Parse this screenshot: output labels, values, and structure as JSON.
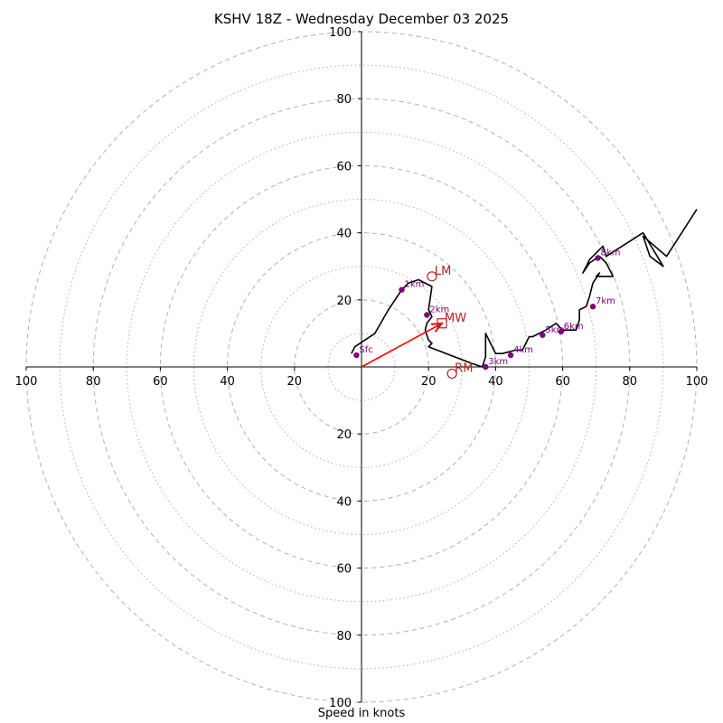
{
  "chart_data": {
    "type": "line",
    "title": "KSHV 18Z - Wednesday December 03 2025",
    "xlabel": "Speed in knots",
    "ylabel": "",
    "xlim": [
      -100,
      100
    ],
    "ylim": [
      -100,
      100
    ],
    "ring_major": [
      20,
      40,
      60,
      80,
      100
    ],
    "ring_minor": [
      10,
      30,
      50,
      70,
      90
    ],
    "x_ticks": [
      -100,
      -80,
      -60,
      -40,
      -20,
      20,
      40,
      60,
      80,
      100
    ],
    "x_tick_labels": [
      "100",
      "80",
      "60",
      "40",
      "20",
      "20",
      "40",
      "60",
      "80",
      "100"
    ],
    "y_ticks": [
      100,
      80,
      60,
      40,
      20,
      -20,
      -40,
      -60,
      -80,
      -100
    ],
    "y_tick_labels": [
      "100",
      "80",
      "60",
      "40",
      "20",
      "20",
      "40",
      "60",
      "80",
      "100"
    ],
    "hodograph": {
      "name": "hodograph",
      "u": [
        -3,
        -2,
        4,
        8,
        12,
        14,
        17,
        21,
        20,
        21,
        19.5,
        19,
        20,
        21,
        20,
        33,
        36,
        37,
        37,
        40,
        42,
        46,
        48,
        50,
        51,
        55,
        58,
        60,
        64,
        65,
        65,
        67,
        68,
        69,
        71,
        70,
        75,
        73,
        71,
        68,
        66,
        68,
        72,
        73,
        84,
        90,
        86,
        84,
        91,
        100
      ],
      "v": [
        4,
        6,
        10,
        17,
        23,
        25,
        26,
        24,
        17,
        15,
        13,
        11,
        8,
        7,
        6,
        1,
        0,
        3,
        10,
        4,
        4,
        5,
        5,
        9,
        9,
        11,
        13,
        11,
        11,
        14,
        17,
        18,
        21,
        25,
        28,
        27,
        27,
        31,
        33,
        31,
        28,
        32,
        36,
        33,
        40,
        30,
        33,
        39,
        33,
        47
      ]
    },
    "height_markers": [
      {
        "label": "Sfc",
        "u": -1.5,
        "v": 3.5
      },
      {
        "label": "1km",
        "u": 12,
        "v": 23
      },
      {
        "label": "2km",
        "u": 19.5,
        "v": 15.5
      },
      {
        "label": "3km",
        "u": 37,
        "v": 0
      },
      {
        "label": "4km",
        "u": 44.5,
        "v": 3.5
      },
      {
        "label": "5km",
        "u": 54,
        "v": 9.5
      },
      {
        "label": "6km",
        "u": 59.5,
        "v": 10.5
      },
      {
        "label": "7km",
        "u": 69,
        "v": 18
      },
      {
        "label": "8km",
        "u": 70.5,
        "v": 32.5
      }
    ],
    "storm_motion_points": [
      {
        "label": "LM",
        "u": 21,
        "v": 27,
        "marker": "circle"
      },
      {
        "label": "MW",
        "u": 24,
        "v": 13,
        "marker": "square"
      },
      {
        "label": "RM",
        "u": 27,
        "v": -2,
        "marker": "circle"
      }
    ],
    "mean_wind_vector": {
      "u": 24,
      "v": 13
    },
    "colors": {
      "hodograph": "#000000",
      "height_marker": "#800080",
      "storm_motion": "#b22222",
      "vector": "#ff0000",
      "ring": "#b0b0b0",
      "axis": "#000000"
    }
  }
}
